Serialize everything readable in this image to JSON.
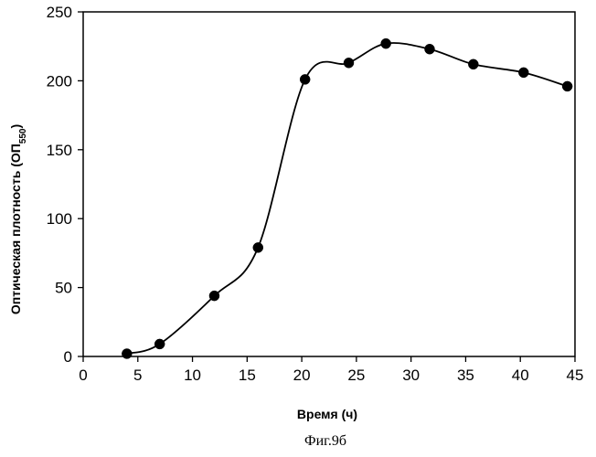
{
  "chart_data": {
    "type": "line",
    "title": "",
    "xlabel": "Время (ч)",
    "ylabel": {
      "prefix": "Оптическая плотность (ОП",
      "subscript": "550",
      "suffix": ")"
    },
    "xlim": [
      0,
      45
    ],
    "ylim": [
      0,
      250
    ],
    "xticks": [
      0,
      5,
      10,
      15,
      20,
      25,
      30,
      35,
      40,
      45
    ],
    "yticks": [
      0,
      50,
      100,
      150,
      200,
      250
    ],
    "grid": false,
    "smooth": true,
    "marker": "circle",
    "line_color": "#000000",
    "marker_color": "#000000",
    "series": [
      {
        "name": "ОП550",
        "x": [
          4,
          7,
          12,
          16,
          20.3,
          24.3,
          27.7,
          31.7,
          35.7,
          40.3,
          44.3
        ],
        "y": [
          2,
          9,
          44,
          79,
          201,
          213,
          227,
          223,
          212,
          206,
          196
        ]
      }
    ],
    "caption": "Фиг.9б"
  }
}
